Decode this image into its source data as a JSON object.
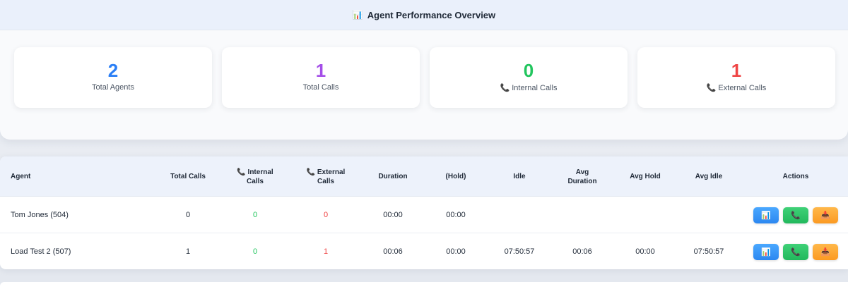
{
  "overview": {
    "icon": "📊",
    "title": "Agent Performance Overview",
    "stats": [
      {
        "value": "2",
        "label": "Total Agents",
        "icon": "",
        "color": "#2b7ff6"
      },
      {
        "value": "1",
        "label": "Total Calls",
        "icon": "",
        "color": "#a44ee8"
      },
      {
        "value": "0",
        "label": "Internal Calls",
        "icon": "📞",
        "color": "#22c55e"
      },
      {
        "value": "1",
        "label": "External Calls",
        "icon": "📞",
        "color": "#ef4444"
      }
    ]
  },
  "table": {
    "headers": {
      "agent": "Agent",
      "total_calls": "Total Calls",
      "internal_icon": "📞",
      "internal_l1": "Internal",
      "internal_l2": "Calls",
      "external_icon": "📞",
      "external_l1": "External",
      "external_l2": "Calls",
      "duration": "Duration",
      "hold": "(Hold)",
      "idle": "Idle",
      "avg_duration_l1": "Avg",
      "avg_duration_l2": "Duration",
      "avg_hold": "Avg Hold",
      "avg_idle": "Avg Idle",
      "actions": "Actions"
    },
    "rows": [
      {
        "agent": "Tom Jones (504)",
        "total_calls": "0",
        "internal": "0",
        "external": "0",
        "duration": "00:00",
        "hold": "00:00",
        "idle": "",
        "avg_duration": "",
        "avg_hold": "",
        "avg_idle": ""
      },
      {
        "agent": "Load Test 2 (507)",
        "total_calls": "1",
        "internal": "0",
        "external": "1",
        "duration": "00:06",
        "hold": "00:00",
        "idle": "07:50:57",
        "avg_duration": "00:06",
        "avg_hold": "00:00",
        "avg_idle": "07:50:57"
      }
    ],
    "action_icons": {
      "stats": "📊",
      "call": "📞",
      "export": "📥"
    }
  }
}
